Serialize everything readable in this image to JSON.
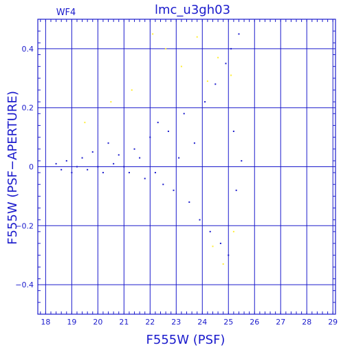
{
  "chart_data": {
    "type": "scatter",
    "title": "lmc_u3gh03",
    "panel_label": "WF4",
    "xlabel": "F555W (PSF)",
    "ylabel": "F555W (PSF−APERTURE)",
    "xlim": [
      17.7,
      29.1
    ],
    "ylim": [
      -0.5,
      0.5
    ],
    "x_ticks": [
      18,
      19,
      20,
      21,
      22,
      23,
      24,
      25,
      26,
      27,
      28,
      29
    ],
    "y_ticks": [
      -0.4,
      -0.2,
      0,
      0.2,
      0.4
    ],
    "y_tick_labels": [
      "−0.4",
      "−0.2",
      "0",
      "0.2",
      "0.4"
    ],
    "grid": true,
    "colors": {
      "axis": "#1a1acc",
      "main_points": "#1a1acc",
      "rejected_points": "#ffee33"
    },
    "series": [
      {
        "color_key": "main_points",
        "points": [
          [
            18.4,
            0.01
          ],
          [
            18.6,
            -0.01
          ],
          [
            18.8,
            0.02
          ],
          [
            19.0,
            -0.02
          ],
          [
            19.2,
            0.0
          ],
          [
            19.4,
            0.03
          ],
          [
            19.6,
            -0.01
          ],
          [
            19.8,
            0.05
          ],
          [
            20.0,
            0.0
          ],
          [
            20.2,
            -0.02
          ],
          [
            20.4,
            0.08
          ],
          [
            20.6,
            0.01
          ],
          [
            20.8,
            0.04
          ],
          [
            21.0,
            0.0
          ],
          [
            21.2,
            -0.02
          ],
          [
            21.4,
            0.06
          ],
          [
            21.6,
            0.03
          ],
          [
            21.8,
            -0.04
          ],
          [
            22.0,
            0.1
          ],
          [
            22.2,
            -0.02
          ],
          [
            22.3,
            0.15
          ],
          [
            22.5,
            -0.06
          ],
          [
            22.7,
            0.12
          ],
          [
            22.9,
            -0.08
          ],
          [
            23.1,
            0.03
          ],
          [
            23.3,
            0.18
          ],
          [
            23.5,
            -0.12
          ],
          [
            23.7,
            0.08
          ],
          [
            23.9,
            -0.18
          ],
          [
            24.1,
            0.22
          ],
          [
            24.3,
            -0.22
          ],
          [
            24.5,
            0.28
          ],
          [
            24.7,
            -0.26
          ],
          [
            24.9,
            0.35
          ],
          [
            25.0,
            -0.3
          ],
          [
            25.1,
            0.4
          ],
          [
            25.2,
            0.12
          ],
          [
            25.3,
            -0.08
          ],
          [
            25.4,
            0.45
          ],
          [
            25.5,
            0.02
          ]
        ]
      },
      {
        "color_key": "rejected_points",
        "points": [
          [
            19.5,
            0.15
          ],
          [
            20.5,
            0.22
          ],
          [
            21.3,
            0.26
          ],
          [
            22.1,
            0.45
          ],
          [
            22.6,
            0.4
          ],
          [
            23.2,
            0.34
          ],
          [
            23.8,
            0.44
          ],
          [
            24.2,
            0.29
          ],
          [
            24.6,
            0.37
          ],
          [
            25.1,
            0.31
          ],
          [
            24.4,
            -0.27
          ],
          [
            24.8,
            -0.33
          ],
          [
            25.2,
            -0.22
          ]
        ]
      }
    ]
  }
}
